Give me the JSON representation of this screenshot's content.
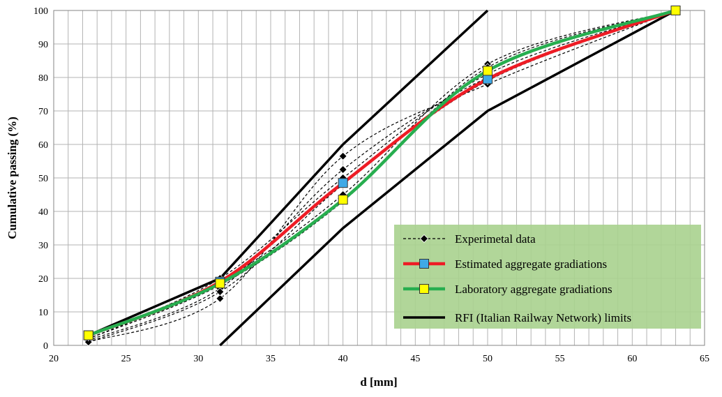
{
  "chart_data": {
    "type": "line",
    "xlabel": "d [mm]",
    "ylabel": "Cumulative passing (%)",
    "xlim": [
      20,
      65
    ],
    "ylim": [
      0,
      100
    ],
    "x_ticks": [
      20,
      25,
      30,
      35,
      40,
      45,
      50,
      55,
      60,
      65
    ],
    "y_ticks": [
      0,
      10,
      20,
      30,
      40,
      50,
      60,
      70,
      80,
      90,
      100
    ],
    "grid": true,
    "legend_position": "bottom-right",
    "legend_background": "#a9d18e",
    "series": [
      {
        "name": "Experimetal data",
        "color": "#000000",
        "style": "dashed",
        "marker": "diamond",
        "curves": [
          [
            [
              22.4,
              1
            ],
            [
              31.5,
              14
            ],
            [
              40,
              56.5
            ],
            [
              50,
              78
            ],
            [
              63,
              100
            ]
          ],
          [
            [
              22.4,
              1.5
            ],
            [
              31.5,
              17
            ],
            [
              40,
              52.5
            ],
            [
              50,
              80
            ],
            [
              63,
              100
            ]
          ],
          [
            [
              22.4,
              2
            ],
            [
              31.5,
              19
            ],
            [
              40,
              45
            ],
            [
              50,
              84
            ],
            [
              63,
              100
            ]
          ],
          [
            [
              22.4,
              2
            ],
            [
              31.5,
              18
            ],
            [
              40,
              43
            ],
            [
              50,
              83
            ],
            [
              63,
              100
            ]
          ],
          [
            [
              22.4,
              1
            ],
            [
              31.5,
              16
            ],
            [
              40,
              48
            ],
            [
              50,
              79
            ],
            [
              63,
              100
            ]
          ],
          [
            [
              22.4,
              2.5
            ],
            [
              31.5,
              20
            ],
            [
              40,
              50
            ],
            [
              50,
              81
            ],
            [
              63,
              100
            ]
          ]
        ]
      },
      {
        "name": "Estimated aggregate gradiations",
        "color": "#ee1c25",
        "marker_color": "#3fa9e6",
        "points": [
          [
            22.4,
            3
          ],
          [
            31.5,
            19
          ],
          [
            40,
            48.5
          ],
          [
            50,
            79.5
          ],
          [
            63,
            100
          ]
        ]
      },
      {
        "name": "Laboratory aggregate gradiations",
        "color": "#27ae4f",
        "marker_color": "#ffff00",
        "points": [
          [
            22.4,
            3
          ],
          [
            31.5,
            18.5
          ],
          [
            40,
            43.5
          ],
          [
            50,
            82
          ],
          [
            63,
            100
          ]
        ]
      },
      {
        "name": "RFI (Italian Railway Network) limits",
        "color": "#000000",
        "upper": [
          [
            22.4,
            3
          ],
          [
            31.5,
            20
          ],
          [
            40,
            60
          ],
          [
            50,
            100
          ]
        ],
        "lower": [
          [
            31.5,
            0
          ],
          [
            40,
            35
          ],
          [
            50,
            70
          ],
          [
            63,
            100
          ]
        ]
      }
    ]
  }
}
